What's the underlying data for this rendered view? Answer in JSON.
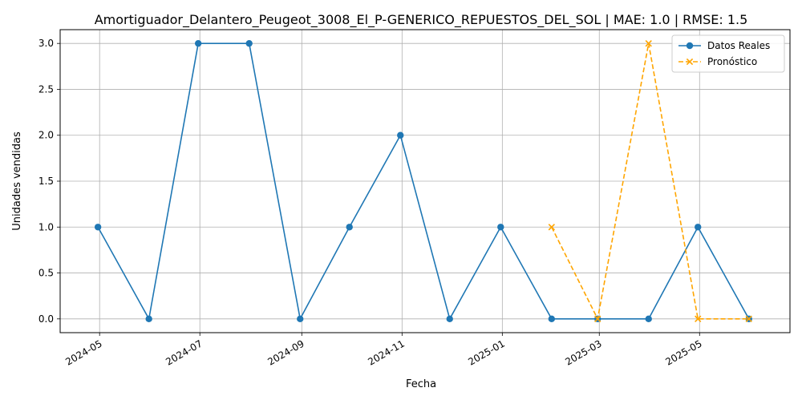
{
  "chart_data": {
    "type": "line",
    "title": "Amortiguador_Delantero_Peugeot_3008_El_P-GENERICO_REPUESTOS_DEL_SOL | MAE: 1.0 | RMSE: 1.5",
    "xlabel": "Fecha",
    "ylabel": "Unidades vendidas",
    "xlim": [
      "2024-04-07",
      "2025-06-25"
    ],
    "ylim": [
      -0.15,
      3.15
    ],
    "x_ticks": [
      "2024-05-01",
      "2024-07-01",
      "2024-09-01",
      "2024-11-01",
      "2025-01-01",
      "2025-03-01",
      "2025-05-01"
    ],
    "x_tick_labels": [
      "2024-05",
      "2024-07",
      "2024-09",
      "2024-11",
      "2025-01",
      "2025-03",
      "2025-05"
    ],
    "y_ticks": [
      0.0,
      0.5,
      1.0,
      1.5,
      2.0,
      2.5,
      3.0
    ],
    "y_tick_labels": [
      "0.0",
      "0.5",
      "1.0",
      "1.5",
      "2.0",
      "2.5",
      "3.0"
    ],
    "grid": true,
    "legend_position": "top-right",
    "series": [
      {
        "name": "Datos Reales",
        "color": "#1f77b4",
        "line_style": "solid",
        "marker": "circle",
        "x": [
          "2024-04-30",
          "2024-05-31",
          "2024-06-30",
          "2024-07-31",
          "2024-08-31",
          "2024-09-30",
          "2024-10-31",
          "2024-11-30",
          "2024-12-31",
          "2025-01-31",
          "2025-02-28",
          "2025-03-31",
          "2025-04-30",
          "2025-05-31"
        ],
        "values": [
          1,
          0,
          3,
          3,
          0,
          1,
          2,
          0,
          1,
          0,
          0,
          0,
          1,
          0
        ]
      },
      {
        "name": "Pronóstico",
        "color": "#ffa500",
        "line_style": "dashed",
        "marker": "x",
        "x": [
          "2025-01-31",
          "2025-02-28",
          "2025-03-31",
          "2025-04-30",
          "2025-05-31"
        ],
        "values": [
          1,
          0,
          3,
          0,
          0
        ]
      }
    ]
  }
}
